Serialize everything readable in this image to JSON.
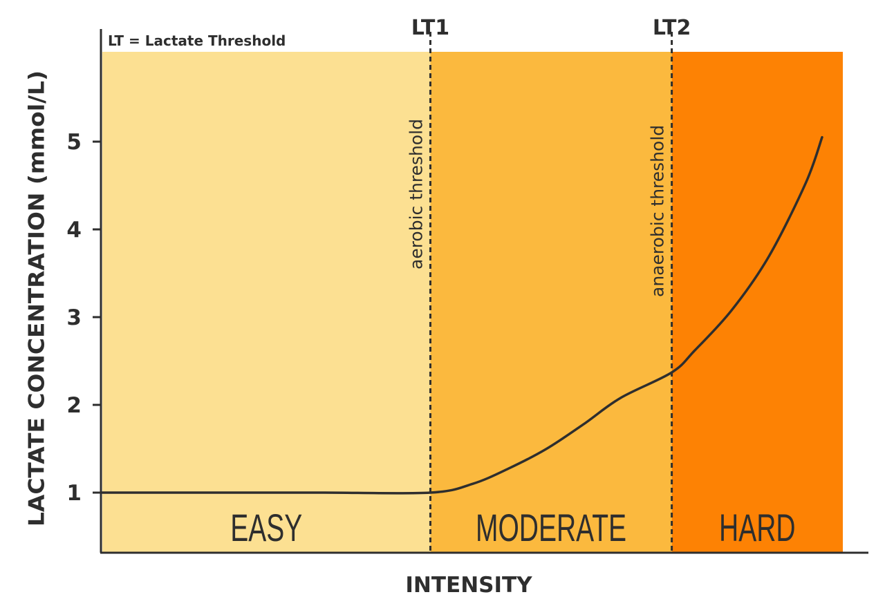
{
  "chart_data": {
    "type": "line",
    "note": "LT = Lactate Threshold",
    "xlabel": "INTENSITY",
    "ylabel": "LACTATE CONCENTRATION (mmol/L)",
    "ylim": [
      0,
      6
    ],
    "xlim": [
      0,
      100
    ],
    "yticks": [
      "1",
      "2",
      "3",
      "4",
      "5"
    ],
    "grid": false,
    "thresholds": [
      {
        "label": "LT1",
        "sublabel": "aerobic threshold",
        "x": 44.3
      },
      {
        "label": "LT2",
        "sublabel": "anaerobic threshold",
        "x": 76.9
      }
    ],
    "zones": [
      {
        "label": "EASY",
        "from": 0,
        "to": 44.3,
        "color": "#fce092"
      },
      {
        "label": "MODERATE",
        "from": 44.3,
        "to": 76.9,
        "color": "#fbb93e"
      },
      {
        "label": "HARD",
        "from": 76.9,
        "to": 100,
        "color": "#fd8204"
      }
    ],
    "series": [
      {
        "color": "#2e2e2e",
        "x": [
          0,
          10,
          20,
          30,
          44.3,
          50,
          55,
          60,
          65,
          70,
          76.9,
          80,
          85,
          90,
          95,
          97.2
        ],
        "y": [
          1.0,
          1.0,
          1.0,
          1.0,
          1.0,
          1.1,
          1.28,
          1.5,
          1.78,
          2.08,
          2.37,
          2.62,
          3.08,
          3.69,
          4.53,
          5.05
        ]
      }
    ]
  }
}
